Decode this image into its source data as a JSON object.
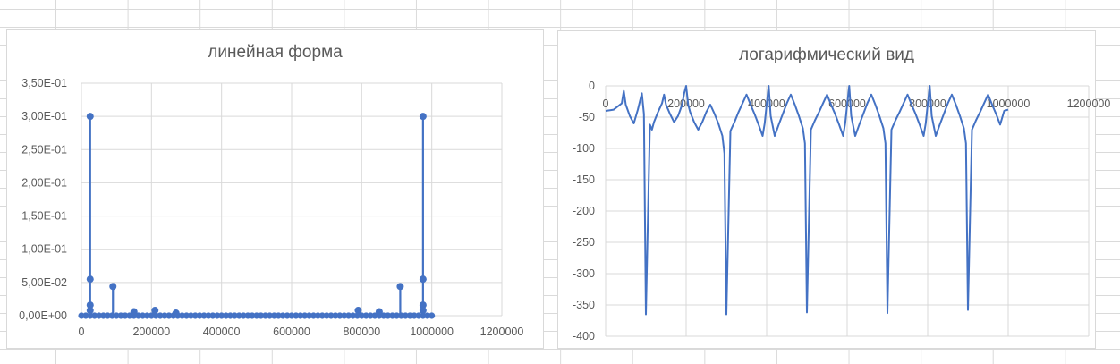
{
  "chart_data": [
    {
      "type": "scatter",
      "title": "линейная форма",
      "xlabel": "",
      "ylabel": "",
      "xlim": [
        0,
        1200000
      ],
      "ylim": [
        0,
        0.35
      ],
      "x_ticks": [
        0,
        200000,
        400000,
        600000,
        800000,
        1000000,
        1200000
      ],
      "x_tick_labels": [
        "0",
        "200000",
        "400000",
        "600000",
        "800000",
        "1000000",
        "1200000"
      ],
      "y_ticks": [
        0,
        0.05,
        0.1,
        0.15,
        0.2,
        0.25,
        0.3,
        0.35
      ],
      "y_tick_labels": [
        "0,00E+00",
        "5,00E-02",
        "1,00E-01",
        "1,50E-01",
        "2,00E-01",
        "2,50E-01",
        "3,00E-01",
        "3,50E-01"
      ],
      "grid": true,
      "legend": "none",
      "series_color": "#4472c4",
      "series": [
        {
          "points": [
            [
              25000,
              0.3
            ],
            [
              25000,
              0.055
            ],
            [
              25000,
              0.016
            ],
            [
              25000,
              0.008
            ],
            [
              90000,
              0.044
            ],
            [
              150000,
              0.006
            ],
            [
              210000,
              0.008
            ],
            [
              270000,
              0.004
            ],
            [
              790000,
              0.008
            ],
            [
              850000,
              0.006
            ],
            [
              910000,
              0.044
            ],
            [
              975000,
              0.3
            ],
            [
              975000,
              0.055
            ],
            [
              975000,
              0.016
            ],
            [
              975000,
              0.008
            ]
          ],
          "baseline_x_range": [
            0,
            1000000
          ]
        }
      ]
    },
    {
      "type": "line",
      "title": "логарифмический вид",
      "xlabel": "",
      "ylabel": "",
      "xlim": [
        0,
        1200000
      ],
      "ylim": [
        -400,
        0
      ],
      "x_ticks": [
        0,
        200000,
        400000,
        600000,
        800000,
        1000000,
        1200000
      ],
      "x_tick_labels": [
        "0",
        "200000",
        "400000",
        "600000",
        "800000",
        "1000000",
        "1200000"
      ],
      "y_ticks": [
        0,
        -50,
        -100,
        -150,
        -200,
        -250,
        -300,
        -350,
        -400
      ],
      "y_tick_labels": [
        "0",
        "-50",
        "-100",
        "-150",
        "-200",
        "-250",
        "-300",
        "-350",
        "-400"
      ],
      "grid": true,
      "legend": "none",
      "series_color": "#4472c4",
      "series": [
        {
          "x": [
            0,
            20000,
            40000,
            45000,
            50000,
            60000,
            70000,
            80000,
            90000,
            95000,
            100000,
            110000,
            115000,
            120000,
            130000,
            140000,
            145000,
            150000,
            160000,
            170000,
            180000,
            190000,
            195000,
            200000,
            205000,
            210000,
            220000,
            230000,
            240000,
            250000,
            260000,
            270000,
            280000,
            290000,
            295000,
            300000,
            310000,
            320000,
            330000,
            340000,
            350000,
            360000,
            370000,
            380000,
            390000,
            395000,
            400000,
            405000,
            410000,
            420000,
            430000,
            440000,
            450000,
            460000,
            470000,
            480000,
            490000,
            495000,
            500000,
            510000,
            520000,
            530000,
            540000,
            550000,
            560000,
            570000,
            580000,
            590000,
            595000,
            600000,
            605000,
            610000,
            620000,
            630000,
            640000,
            650000,
            660000,
            670000,
            680000,
            690000,
            695000,
            700000,
            710000,
            720000,
            730000,
            740000,
            750000,
            760000,
            770000,
            780000,
            790000,
            795000,
            800000,
            805000,
            810000,
            820000,
            830000,
            840000,
            850000,
            860000,
            870000,
            880000,
            890000,
            895000,
            900000,
            910000,
            920000,
            930000,
            940000,
            950000,
            960000,
            970000,
            980000,
            990000,
            1000000
          ],
          "y": [
            -40,
            -38,
            -28,
            -8,
            -30,
            -48,
            -60,
            -38,
            -12,
            -45,
            -365,
            -62,
            -70,
            -58,
            -42,
            -28,
            -14,
            -30,
            -45,
            -58,
            -48,
            -30,
            -12,
            0,
            -30,
            -42,
            -58,
            -70,
            -58,
            -42,
            -30,
            -44,
            -60,
            -80,
            -108,
            -365,
            -72,
            -58,
            -42,
            -28,
            -14,
            -30,
            -45,
            -62,
            -80,
            -60,
            -30,
            0,
            -48,
            -80,
            -62,
            -45,
            -28,
            -14,
            -30,
            -48,
            -68,
            -92,
            -362,
            -70,
            -55,
            -42,
            -28,
            -14,
            -30,
            -45,
            -62,
            -80,
            -60,
            -30,
            0,
            -48,
            -80,
            -62,
            -45,
            -28,
            -14,
            -30,
            -48,
            -68,
            -92,
            -363,
            -70,
            -55,
            -42,
            -28,
            -14,
            -30,
            -45,
            -62,
            -80,
            -60,
            -30,
            0,
            -48,
            -80,
            -62,
            -45,
            -28,
            -14,
            -30,
            -48,
            -68,
            -92,
            -358,
            -70,
            -55,
            -42,
            -28,
            -14,
            -30,
            -45,
            -62,
            -40,
            -38
          ]
        }
      ]
    }
  ]
}
